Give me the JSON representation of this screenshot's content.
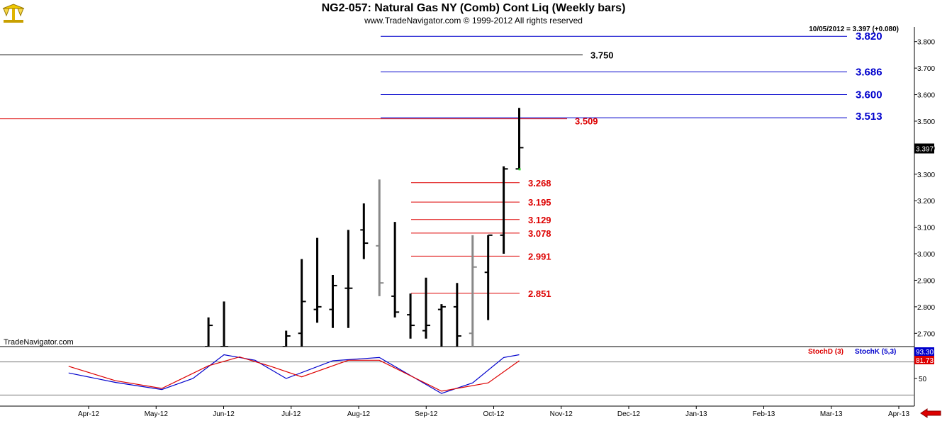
{
  "header": {
    "title": "NG2-057:  Natural Gas NY (Comb) Cont Liq  (Weekly bars)",
    "subtitle": "www.TradeNavigator.com © 1999-2012 All rights reserved",
    "quote": "10/05/2012 = 3.397 (+0.080)",
    "watermark": "TradeNavigator.com"
  },
  "colors": {
    "blue_level": "#0000cc",
    "red_level": "#dd0000",
    "black_level": "#000000",
    "bar_main": "#000000",
    "bar_grey": "#888888",
    "stoch_d": "#dd0000",
    "stoch_k": "#0000cc"
  },
  "chart_data": [
    {
      "type": "ohlc",
      "title": "NG2-057:  Natural Gas NY (Comb) Cont Liq  (Weekly bars)",
      "ylim": [
        2.65,
        3.85
      ],
      "y_ticks": [
        "3.800",
        "3.700",
        "3.600",
        "3.500",
        "3.400",
        "3.300",
        "3.200",
        "3.100",
        "3.000",
        "2.900",
        "2.800",
        "2.700"
      ],
      "x_ticks": [
        "Apr-12",
        "May-12",
        "Jun-12",
        "Jul-12",
        "Aug-12",
        "Sep-12",
        "Oct-12",
        "Nov-12",
        "Dec-12",
        "Jan-13",
        "Feb-13",
        "Mar-13",
        "Apr-13"
      ],
      "last_price_label": "3.397",
      "bars": [
        {
          "week": "2012-05-25",
          "open": 2.65,
          "high": 2.76,
          "low": 2.65,
          "close": 2.73,
          "color": "black"
        },
        {
          "week": "2012-06-01",
          "open": 2.65,
          "high": 2.82,
          "low": 2.65,
          "close": 2.65,
          "color": "black"
        },
        {
          "week": "2012-06-29",
          "open": 2.65,
          "high": 2.71,
          "low": 2.65,
          "close": 2.69,
          "color": "black"
        },
        {
          "week": "2012-07-06",
          "open": 2.7,
          "high": 2.98,
          "low": 2.65,
          "close": 2.82,
          "color": "black"
        },
        {
          "week": "2012-07-13",
          "open": 2.79,
          "high": 3.06,
          "low": 2.74,
          "close": 2.8,
          "color": "black"
        },
        {
          "week": "2012-07-20",
          "open": 2.79,
          "high": 2.92,
          "low": 2.72,
          "close": 2.88,
          "color": "black"
        },
        {
          "week": "2012-07-27",
          "open": 2.87,
          "high": 3.09,
          "low": 2.72,
          "close": 2.87,
          "color": "black"
        },
        {
          "week": "2012-08-03",
          "open": 3.09,
          "high": 3.19,
          "low": 2.98,
          "close": 3.04,
          "color": "black"
        },
        {
          "week": "2012-08-10",
          "open": 3.03,
          "high": 3.28,
          "low": 2.84,
          "close": 2.89,
          "color": "grey"
        },
        {
          "week": "2012-08-17",
          "open": 2.84,
          "high": 3.12,
          "low": 2.76,
          "close": 2.78,
          "color": "black"
        },
        {
          "week": "2012-08-24",
          "open": 2.77,
          "high": 2.85,
          "low": 2.68,
          "close": 2.73,
          "color": "black"
        },
        {
          "week": "2012-08-31",
          "open": 2.71,
          "high": 2.91,
          "low": 2.68,
          "close": 2.73,
          "color": "black"
        },
        {
          "week": "2012-09-07",
          "open": 2.79,
          "high": 2.81,
          "low": 2.65,
          "close": 2.8,
          "color": "black"
        },
        {
          "week": "2012-09-14",
          "open": 2.8,
          "high": 2.89,
          "low": 2.65,
          "close": 2.69,
          "color": "black"
        },
        {
          "week": "2012-09-21",
          "open": 2.7,
          "high": 3.07,
          "low": 2.65,
          "close": 2.95,
          "color": "grey"
        },
        {
          "week": "2012-09-28",
          "open": 2.93,
          "high": 3.07,
          "low": 2.75,
          "close": 3.07,
          "color": "black"
        },
        {
          "week": "2012-10-05",
          "open": 3.07,
          "high": 3.33,
          "low": 3.0,
          "close": 3.32,
          "color": "black"
        },
        {
          "week": "2012-10-12",
          "open": 3.32,
          "high": 3.55,
          "low": 3.32,
          "close": 3.4,
          "color": "black"
        }
      ],
      "levels": [
        {
          "label": "3.820",
          "value": 3.82,
          "color": "blue"
        },
        {
          "label": "3.750",
          "value": 3.75,
          "color": "black"
        },
        {
          "label": "3.686",
          "value": 3.686,
          "color": "blue"
        },
        {
          "label": "3.600",
          "value": 3.6,
          "color": "blue"
        },
        {
          "label": "3.513",
          "value": 3.513,
          "color": "blue"
        },
        {
          "label": "3.509",
          "value": 3.509,
          "color": "red"
        },
        {
          "label": "3.268",
          "value": 3.268,
          "color": "red"
        },
        {
          "label": "3.195",
          "value": 3.195,
          "color": "red"
        },
        {
          "label": "3.129",
          "value": 3.129,
          "color": "red"
        },
        {
          "label": "3.078",
          "value": 3.078,
          "color": "red"
        },
        {
          "label": "2.991",
          "value": 2.991,
          "color": "red"
        },
        {
          "label": "2.851",
          "value": 2.851,
          "color": "red"
        }
      ]
    },
    {
      "type": "line",
      "ylim": [
        0,
        100
      ],
      "y_ticks": [
        "50"
      ],
      "series": [
        {
          "name": "StochD (3)",
          "color": "red",
          "last_label": "81.73",
          "points": [
            [
              "2012-03-23",
              72
            ],
            [
              "2012-04-13",
              46
            ],
            [
              "2012-05-04",
              32
            ],
            [
              "2012-05-25",
              73
            ],
            [
              "2012-06-08",
              89
            ],
            [
              "2012-06-22",
              72
            ],
            [
              "2012-07-06",
              53
            ],
            [
              "2012-07-27",
              83
            ],
            [
              "2012-08-10",
              83
            ],
            [
              "2012-09-07",
              27
            ],
            [
              "2012-09-28",
              42
            ],
            [
              "2012-10-12",
              82
            ]
          ]
        },
        {
          "name": "StochK (5,3)",
          "color": "blue",
          "last_label": "93.30",
          "points": [
            [
              "2012-03-23",
              60
            ],
            [
              "2012-04-13",
              43
            ],
            [
              "2012-05-04",
              30
            ],
            [
              "2012-05-18",
              50
            ],
            [
              "2012-06-01",
              93
            ],
            [
              "2012-06-15",
              83
            ],
            [
              "2012-06-29",
              50
            ],
            [
              "2012-07-20",
              82
            ],
            [
              "2012-08-10",
              88
            ],
            [
              "2012-09-07",
              23
            ],
            [
              "2012-09-21",
              42
            ],
            [
              "2012-10-05",
              88
            ],
            [
              "2012-10-12",
              93
            ]
          ]
        }
      ]
    }
  ]
}
